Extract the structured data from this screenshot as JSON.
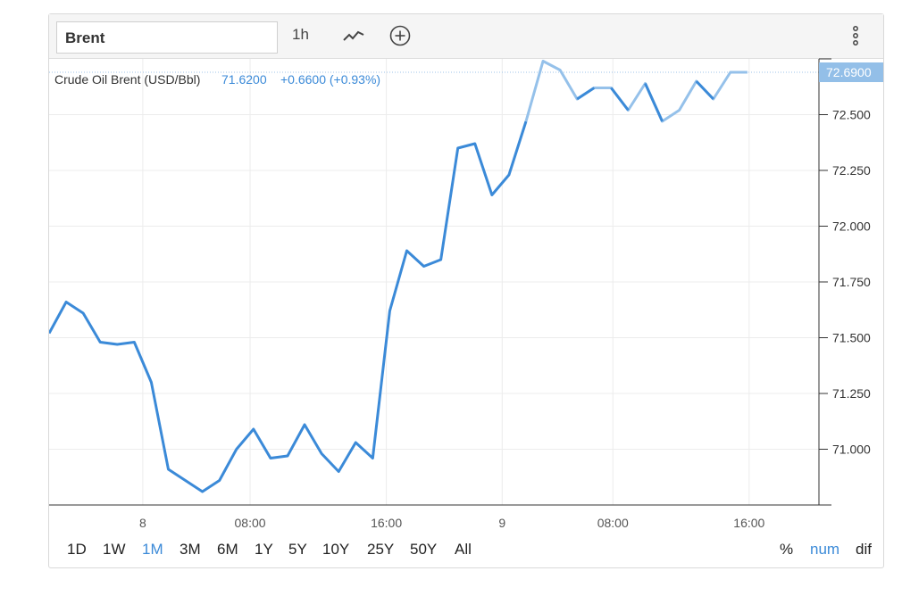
{
  "toolbar": {
    "symbol": "Brent",
    "interval": "1h",
    "icons": [
      "line-chart-icon",
      "add-circle-icon",
      "more-vertical-icon"
    ]
  },
  "legend": {
    "name": "Crude Oil Brent (USD/Bbl)",
    "price": "71.6200",
    "change": "+0.6600 (+0.93%)"
  },
  "price_label": "72.6900",
  "ranges": [
    {
      "label": "1D",
      "active": false
    },
    {
      "label": "1W",
      "active": false
    },
    {
      "label": "1M",
      "active": true
    },
    {
      "label": "3M",
      "active": false
    },
    {
      "label": "6M",
      "active": false
    },
    {
      "label": "1Y",
      "active": false
    },
    {
      "label": "5Y",
      "active": false
    },
    {
      "label": "10Y",
      "active": false
    },
    {
      "label": "25Y",
      "active": false
    },
    {
      "label": "50Y",
      "active": false
    },
    {
      "label": "All",
      "active": false
    }
  ],
  "modes": [
    {
      "label": "%",
      "active": false
    },
    {
      "label": "num",
      "active": true
    },
    {
      "label": "dif",
      "active": false
    }
  ],
  "colors": {
    "line": "#3b8ad8",
    "line_light": "#95c1ea",
    "active": "#3b8ad8",
    "price_tag": "#93bfe8"
  },
  "chart_data": {
    "type": "line",
    "series": [
      {
        "name": "Crude Oil Brent (USD/Bbl)",
        "x": [
          0,
          1,
          2,
          3,
          4,
          5,
          6,
          7,
          8,
          9,
          10,
          11,
          12,
          13,
          14,
          15,
          16,
          17,
          18,
          19,
          20,
          21,
          22,
          23,
          24,
          25,
          26,
          27,
          28,
          29,
          30,
          31,
          32,
          33,
          34,
          35,
          36,
          37,
          38,
          39,
          40,
          41
        ],
        "values": [
          71.52,
          71.66,
          71.61,
          71.48,
          71.47,
          71.48,
          71.3,
          70.91,
          70.86,
          70.81,
          70.86,
          71.0,
          71.09,
          70.96,
          70.97,
          71.11,
          70.98,
          70.9,
          71.03,
          70.96,
          71.62,
          71.89,
          71.82,
          71.85,
          72.35,
          72.37,
          72.14,
          72.23,
          72.47,
          72.74,
          72.7,
          72.57,
          72.62,
          72.62,
          72.52,
          72.64,
          72.47,
          72.52,
          72.65,
          72.57,
          72.69,
          72.69
        ]
      }
    ],
    "x_ticks": [
      {
        "x": 5.5,
        "label": "8"
      },
      {
        "x": 11.8,
        "label": "08:00"
      },
      {
        "x": 19.8,
        "label": "16:00"
      },
      {
        "x": 26.6,
        "label": "9"
      },
      {
        "x": 33.1,
        "label": "08:00"
      },
      {
        "x": 41.1,
        "label": "16:00"
      }
    ],
    "y_ticks": [
      71.0,
      71.25,
      71.5,
      71.75,
      72.0,
      72.25,
      72.5
    ],
    "ylim": [
      70.75,
      72.75
    ],
    "xlim": [
      0,
      45.2
    ],
    "current_value": 72.69,
    "light_after_x": 28.6,
    "grid": true,
    "legend_position": "top-left"
  }
}
